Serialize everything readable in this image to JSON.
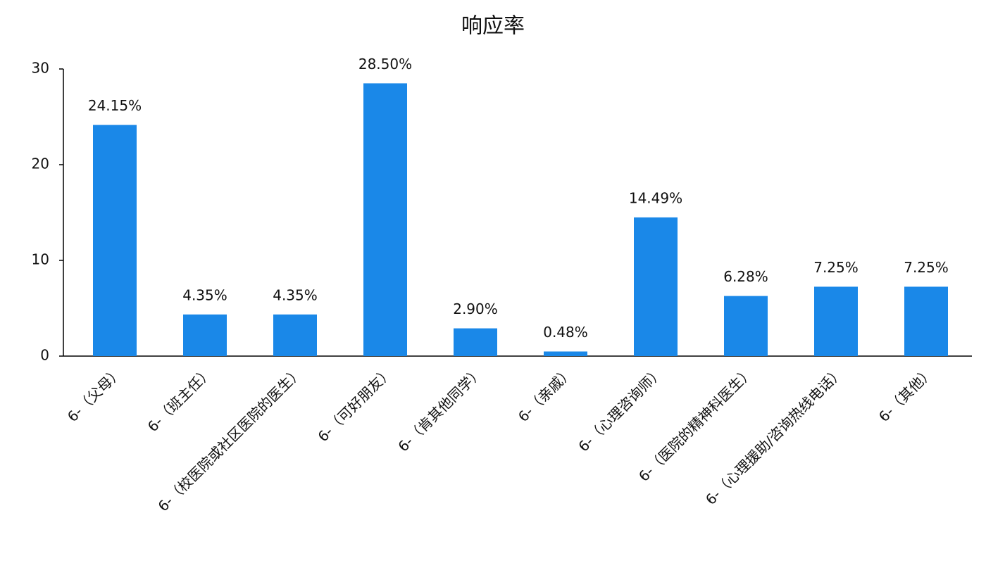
{
  "chart_data": {
    "type": "bar",
    "title": "响应率",
    "categories": [
      "6-（父母）",
      "6-（班主任）",
      "6-（校医院或社区医院的医生）",
      "6-（可好朋友）",
      "6-（肯其他同学）",
      "6-（亲戚）",
      "6-（心理咨询师）",
      "6-（医院的精神科医生）",
      "6-（心理援助/咨询热线电话）",
      "6-（其他）"
    ],
    "values": [
      24.15,
      4.35,
      4.35,
      28.5,
      2.9,
      0.48,
      14.49,
      6.28,
      7.25,
      7.25
    ],
    "value_labels": [
      "24.15%",
      "4.35%",
      "4.35%",
      "28.50%",
      "2.90%",
      "0.48%",
      "14.49%",
      "6.28%",
      "7.25%",
      "7.25%"
    ],
    "color": "#1a88e8",
    "ylim": [
      0,
      30
    ],
    "yticks": [
      0,
      10,
      20,
      30
    ],
    "grid": false
  }
}
